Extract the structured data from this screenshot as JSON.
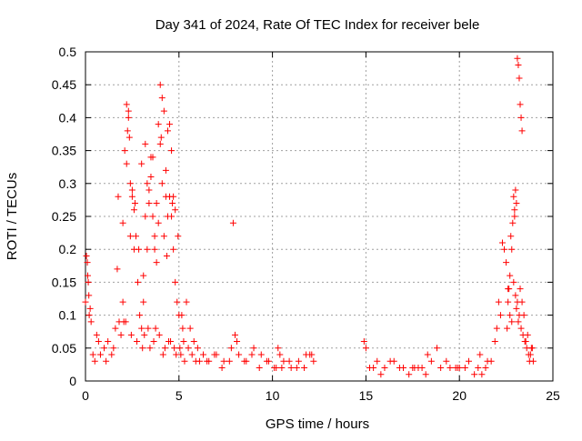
{
  "chart_data": {
    "type": "scatter",
    "title": "Day 341 of 2024, Rate Of TEC Index for receiver bele",
    "xlabel": "GPS time / hours",
    "ylabel": "ROTI / TECUs",
    "xlim": [
      0,
      25
    ],
    "ylim": [
      0,
      0.5
    ],
    "x_ticks": [
      0,
      5,
      10,
      15,
      20,
      25
    ],
    "y_ticks": [
      0,
      0.05,
      0.1,
      0.15,
      0.2,
      0.25,
      0.3,
      0.35,
      0.4,
      0.45,
      0.5
    ],
    "x_tick_labels": [
      "0",
      "5",
      "10",
      "15",
      "20",
      "25"
    ],
    "y_tick_labels": [
      "0",
      "0.05",
      "0.1",
      "0.15",
      "0.2",
      "0.25",
      "0.3",
      "0.35",
      "0.4",
      "0.45",
      "0.5"
    ],
    "grid": true,
    "marker": "+",
    "series": [
      {
        "color": "#ff0000",
        "x": [
          0.0,
          0.1,
          0.15,
          0.2,
          0.3,
          0.4,
          0.5,
          0.6,
          0.8,
          1.0,
          1.2,
          1.4,
          1.6,
          1.8,
          2.0,
          2.1,
          2.2,
          2.3,
          2.4,
          2.5,
          2.6,
          2.7,
          2.8,
          2.9,
          3.0,
          3.1,
          3.2,
          3.3,
          3.4,
          3.5,
          3.6,
          3.7,
          3.8,
          3.9,
          4.0,
          4.1,
          4.2,
          4.3,
          4.4,
          4.5,
          4.6,
          4.7,
          4.8,
          4.9,
          5.0,
          5.2,
          5.4,
          5.6,
          5.8,
          6.0,
          6.3,
          6.6,
          7.0,
          7.4,
          7.8,
          8.2,
          8.6,
          9.0,
          9.4,
          9.8,
          10.2,
          10.6,
          11.0,
          11.4,
          11.8,
          12.1,
          14.9,
          15.2,
          15.6,
          16.0,
          16.5,
          17.0,
          17.5,
          18.0,
          18.5,
          19.0,
          19.5,
          20.0,
          20.5,
          21.0,
          21.4,
          21.7,
          22.0,
          22.2,
          22.4,
          22.5,
          22.6,
          22.7,
          22.8,
          22.9,
          23.0,
          23.1,
          23.2,
          23.3,
          23.4,
          23.5,
          23.6,
          23.7,
          23.8,
          23.9,
          0.05,
          0.12,
          0.18,
          0.25,
          2.2,
          2.25,
          2.3,
          2.35,
          2.5,
          2.6,
          3.0,
          3.2,
          3.5,
          3.9,
          4.0,
          4.1,
          4.2,
          4.4,
          4.5,
          4.6,
          4.7,
          4.8,
          2.0,
          2.4,
          3.3,
          3.6,
          3.8,
          4.3,
          0.7,
          1.1,
          1.5,
          1.9,
          2.15,
          2.45,
          2.75,
          3.05,
          3.35,
          3.65,
          3.95,
          4.25,
          4.55,
          4.85,
          5.1,
          5.3,
          5.5,
          5.7,
          5.9,
          6.1,
          6.5,
          6.9,
          7.3,
          7.7,
          8.1,
          8.5,
          8.9,
          9.3,
          9.7,
          10.1,
          10.5,
          10.9,
          11.3,
          11.7,
          12.0,
          15.0,
          15.4,
          15.8,
          16.3,
          16.8,
          17.3,
          17.8,
          18.3,
          18.8,
          19.3,
          19.8,
          20.3,
          20.8,
          21.2,
          21.5,
          21.9,
          22.1,
          22.3,
          22.55,
          22.65,
          22.75,
          22.85,
          22.95,
          23.05,
          23.15,
          23.25,
          23.35,
          23.45,
          23.55,
          23.65,
          23.75,
          23.85,
          23.95,
          22.6,
          22.7,
          22.8,
          22.9,
          22.95,
          23.0,
          23.05,
          23.1,
          23.15,
          23.2,
          23.25,
          23.3,
          23.35,
          3.1,
          3.15,
          3.4,
          3.45,
          3.7,
          3.75,
          4.05,
          4.15,
          4.35,
          4.45,
          4.65,
          4.75,
          4.95,
          5.05,
          5.15,
          5.25,
          2.05,
          2.65,
          2.85,
          1.7,
          1.75,
          7.9,
          8.0,
          10.3,
          10.4,
          12.2,
          21.1,
          19.9,
          18.2,
          17.6
        ],
        "y": [
          0.12,
          0.18,
          0.15,
          0.1,
          0.09,
          0.04,
          0.03,
          0.07,
          0.04,
          0.05,
          0.06,
          0.04,
          0.08,
          0.09,
          0.12,
          0.35,
          0.33,
          0.41,
          0.3,
          0.28,
          0.2,
          0.22,
          0.15,
          0.1,
          0.08,
          0.12,
          0.25,
          0.2,
          0.29,
          0.31,
          0.25,
          0.2,
          0.18,
          0.24,
          0.36,
          0.3,
          0.22,
          0.28,
          0.25,
          0.28,
          0.25,
          0.2,
          0.15,
          0.12,
          0.1,
          0.08,
          0.12,
          0.08,
          0.06,
          0.05,
          0.04,
          0.03,
          0.04,
          0.03,
          0.05,
          0.04,
          0.03,
          0.05,
          0.04,
          0.03,
          0.02,
          0.03,
          0.02,
          0.03,
          0.04,
          0.04,
          0.06,
          0.02,
          0.03,
          0.02,
          0.03,
          0.02,
          0.02,
          0.02,
          0.03,
          0.02,
          0.02,
          0.02,
          0.03,
          0.02,
          0.02,
          0.03,
          0.08,
          0.1,
          0.2,
          0.18,
          0.12,
          0.1,
          0.09,
          0.15,
          0.13,
          0.12,
          0.1,
          0.08,
          0.07,
          0.06,
          0.05,
          0.04,
          0.04,
          0.05,
          0.19,
          0.16,
          0.13,
          0.11,
          0.42,
          0.38,
          0.4,
          0.37,
          0.29,
          0.26,
          0.33,
          0.36,
          0.34,
          0.39,
          0.45,
          0.43,
          0.41,
          0.38,
          0.39,
          0.35,
          0.28,
          0.26,
          0.24,
          0.22,
          0.3,
          0.34,
          0.27,
          0.32,
          0.06,
          0.03,
          0.05,
          0.07,
          0.09,
          0.07,
          0.06,
          0.05,
          0.08,
          0.06,
          0.07,
          0.05,
          0.06,
          0.04,
          0.04,
          0.03,
          0.05,
          0.04,
          0.03,
          0.03,
          0.03,
          0.04,
          0.02,
          0.03,
          0.06,
          0.03,
          0.04,
          0.02,
          0.03,
          0.02,
          0.02,
          0.03,
          0.02,
          0.02,
          0.04,
          0.05,
          0.02,
          0.01,
          0.03,
          0.02,
          0.01,
          0.02,
          0.04,
          0.05,
          0.03,
          0.02,
          0.02,
          0.01,
          0.01,
          0.03,
          0.06,
          0.12,
          0.21,
          0.08,
          0.14,
          0.22,
          0.24,
          0.26,
          0.11,
          0.09,
          0.14,
          0.12,
          0.1,
          0.06,
          0.07,
          0.03,
          0.05,
          0.03,
          0.14,
          0.16,
          0.2,
          0.28,
          0.25,
          0.29,
          0.27,
          0.49,
          0.48,
          0.46,
          0.42,
          0.4,
          0.38,
          0.16,
          0.07,
          0.27,
          0.05,
          0.22,
          0.08,
          0.37,
          0.04,
          0.19,
          0.06,
          0.27,
          0.05,
          0.22,
          0.05,
          0.1,
          0.06,
          0.09,
          0.27,
          0.2,
          0.17,
          0.28,
          0.24,
          0.07,
          0.05,
          0.04,
          0.03,
          0.04,
          0.02,
          0.01,
          0.02
        ]
      }
    ]
  }
}
